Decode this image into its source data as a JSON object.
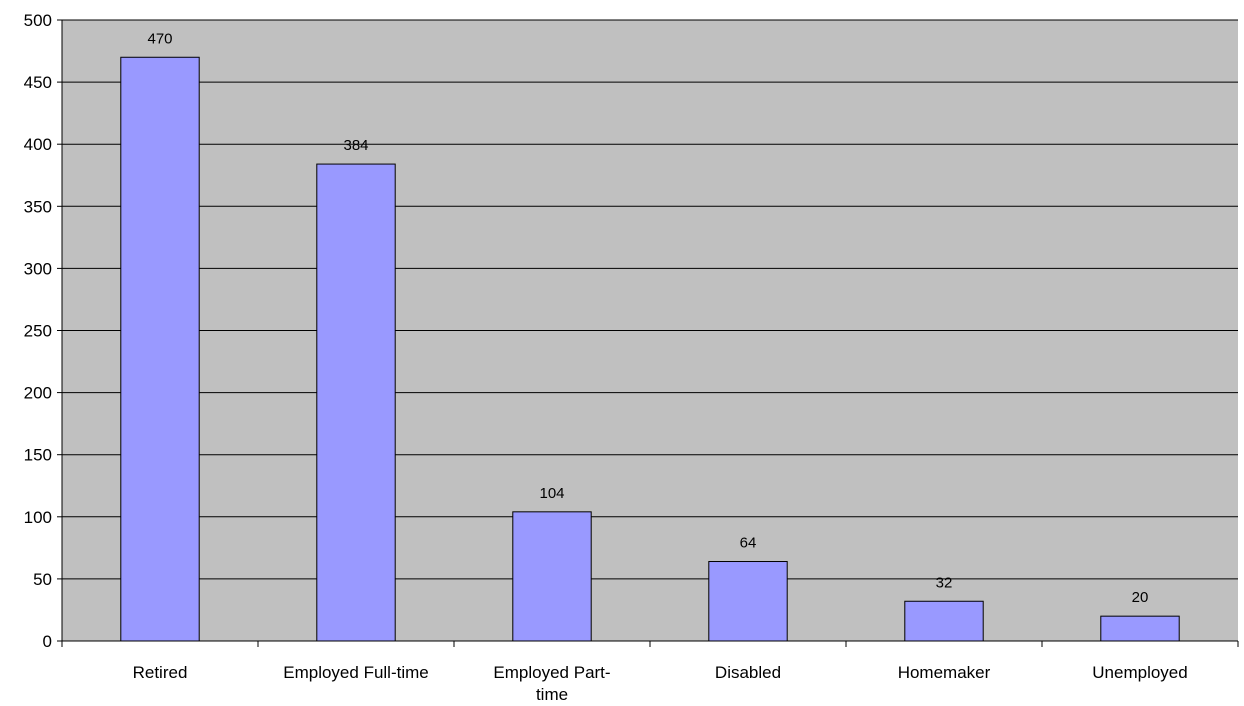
{
  "chart_data": {
    "type": "bar",
    "categories": [
      "Retired",
      "Employed Full-time",
      "Employed Part-time",
      "Disabled",
      "Homemaker",
      "Unemployed"
    ],
    "category_label_lines": [
      [
        "Retired"
      ],
      [
        "Employed Full-time"
      ],
      [
        "Employed Part-",
        "time"
      ],
      [
        "Disabled"
      ],
      [
        "Homemaker"
      ],
      [
        "Unemployed"
      ]
    ],
    "values": [
      470,
      384,
      104,
      64,
      32,
      20
    ],
    "title": "",
    "xlabel": "",
    "ylabel": "",
    "ylim": [
      0,
      500
    ],
    "yticks": [
      0,
      50,
      100,
      150,
      200,
      250,
      300,
      350,
      400,
      450,
      500
    ],
    "grid": true,
    "legend": "none",
    "data_labels": true
  },
  "colors": {
    "bar_fill": "#9999ff",
    "plot_background": "#c0c0c0",
    "gridline": "#000000"
  }
}
